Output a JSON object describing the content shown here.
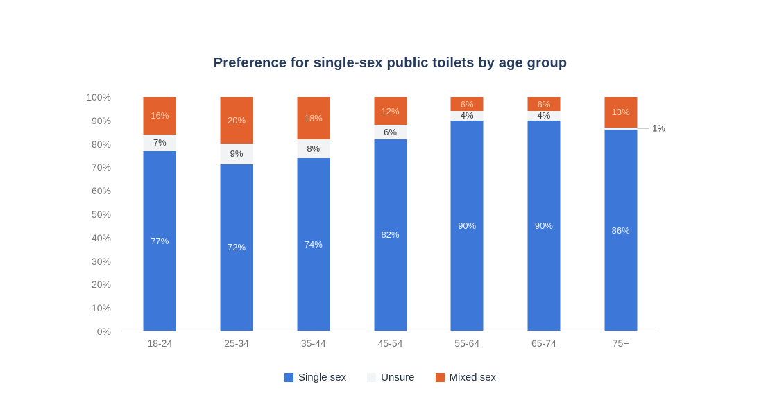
{
  "title": "Preference for single-sex public toilets by age group",
  "chart_data": {
    "type": "bar",
    "stacked": true,
    "title": "Preference for single-sex public toilets by age group",
    "categories": [
      "18-24",
      "25-34",
      "35-44",
      "45-54",
      "55-64",
      "65-74",
      "75+"
    ],
    "series": [
      {
        "name": "Single sex",
        "color": "#3d78d8",
        "label_color": "#eef2fb",
        "values": [
          77,
          72,
          74,
          82,
          90,
          90,
          86
        ]
      },
      {
        "name": "Unsure",
        "color": "#f2f3f4",
        "label_color": "#3d3d3d",
        "values": [
          7,
          9,
          8,
          6,
          4,
          4,
          1
        ]
      },
      {
        "name": "Mixed sex",
        "color": "#e2612c",
        "label_color": "#f6cfae",
        "values": [
          16,
          20,
          18,
          12,
          6,
          6,
          13
        ]
      }
    ],
    "y_ticks": [
      "100%",
      "90%",
      "80%",
      "70%",
      "60%",
      "50%",
      "40%",
      "30%",
      "20%",
      "10%",
      "0%"
    ],
    "ylim": [
      0,
      100
    ],
    "value_suffix": "%",
    "grid": false,
    "legend_position": "bottom",
    "callout": {
      "bar": "75+",
      "series": "Unsure",
      "label": "1%"
    }
  },
  "colors": {
    "title_text": "#24395b",
    "axis_tick_text": "#757575",
    "axis_line": "#d9d9d9",
    "legend_text": "#223142",
    "callout_line": "#9e9e9e",
    "background": "#ffffff"
  }
}
